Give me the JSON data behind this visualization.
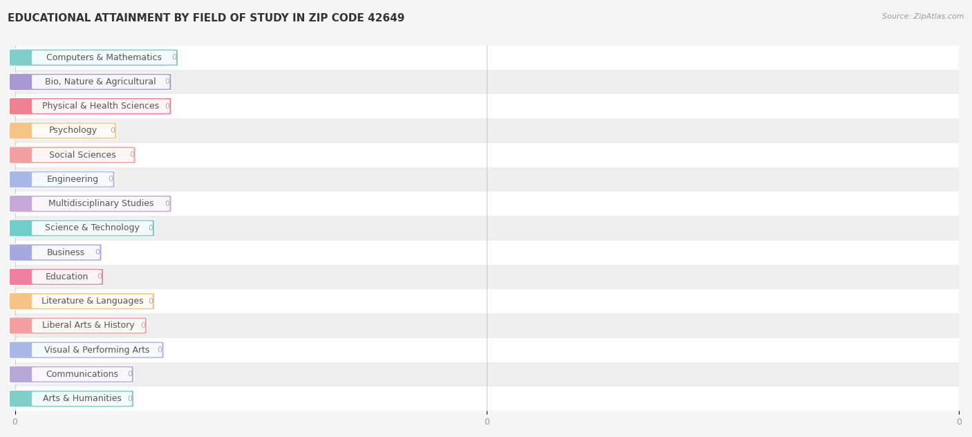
{
  "title": "EDUCATIONAL ATTAINMENT BY FIELD OF STUDY IN ZIP CODE 42649",
  "source": "Source: ZipAtlas.com",
  "categories": [
    "Computers & Mathematics",
    "Bio, Nature & Agricultural",
    "Physical & Health Sciences",
    "Psychology",
    "Social Sciences",
    "Engineering",
    "Multidisciplinary Studies",
    "Science & Technology",
    "Business",
    "Education",
    "Literature & Languages",
    "Liberal Arts & History",
    "Visual & Performing Arts",
    "Communications",
    "Arts & Humanities"
  ],
  "values": [
    0,
    0,
    0,
    0,
    0,
    0,
    0,
    0,
    0,
    0,
    0,
    0,
    0,
    0,
    0
  ],
  "bar_colors": [
    "#7ECECA",
    "#A899D4",
    "#F08090",
    "#F5C485",
    "#F4A0A0",
    "#A8B8E8",
    "#C8A8D8",
    "#6ECECE",
    "#A8A8E0",
    "#F080A0",
    "#F5C485",
    "#F4A0A0",
    "#A8B8E8",
    "#B8A8D8",
    "#7ECECA"
  ],
  "background_color": "#f5f5f5",
  "row_bg_light": "#ffffff",
  "row_bg_dark": "#eeeeee",
  "title_fontsize": 11,
  "label_fontsize": 9
}
